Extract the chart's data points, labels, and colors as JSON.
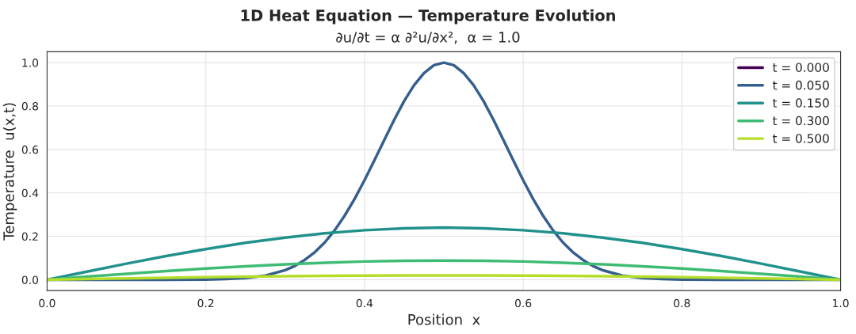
{
  "chart_data": {
    "type": "line",
    "title": "1D Heat Equation — Temperature Evolution",
    "subtitle": "∂u/∂t = α ∂²u/∂x²,  α = 1.0",
    "xlabel": "Position  x",
    "ylabel": "Temperature  u(x,t)",
    "xlim": [
      0,
      1
    ],
    "ylim": [
      -0.05,
      1.05
    ],
    "xticks": [
      {
        "value": 0,
        "label": "0.0"
      },
      {
        "value": 0.2,
        "label": "0.2"
      },
      {
        "value": 0.4,
        "label": "0.4"
      },
      {
        "value": 0.6,
        "label": "0.6"
      },
      {
        "value": 0.8,
        "label": "0.8"
      },
      {
        "value": 1,
        "label": "1.0"
      }
    ],
    "yticks": [
      {
        "value": 0,
        "label": "0.0"
      },
      {
        "value": 0.2,
        "label": "0.2"
      },
      {
        "value": 0.4,
        "label": "0.4"
      },
      {
        "value": 0.6,
        "label": "0.6"
      },
      {
        "value": 0.8,
        "label": "0.8"
      },
      {
        "value": 1,
        "label": "1.0"
      }
    ],
    "grid": true,
    "legend": "top right",
    "marker": "none",
    "line_style": "solid",
    "series": [
      {
        "name": "t = 0.000",
        "color": "#440154"
      },
      {
        "name": "t = 0.050",
        "color": "#355f8d",
        "x": [
          0,
          0.05,
          0.1,
          0.15,
          0.2,
          0.225,
          0.25,
          0.275,
          0.3,
          0.3125,
          0.325,
          0.3375,
          0.35,
          0.3625,
          0.375,
          0.3875,
          0.4,
          0.4125,
          0.425,
          0.4375,
          0.45,
          0.4625,
          0.475,
          0.4875,
          0.5,
          0.5125,
          0.525,
          0.5375,
          0.55,
          0.5625,
          0.575,
          0.5875,
          0.6,
          0.6125,
          0.625,
          0.6375,
          0.65,
          0.6625,
          0.675,
          0.6875,
          0.7,
          0.725,
          0.75,
          0.775,
          0.8,
          0.85,
          0.9,
          0.95,
          1
        ],
        "values": [
          0,
          0,
          0,
          0,
          0.001,
          0.003,
          0.008,
          0.019,
          0.044,
          0.064,
          0.092,
          0.127,
          0.172,
          0.228,
          0.295,
          0.372,
          0.458,
          0.55,
          0.644,
          0.737,
          0.823,
          0.896,
          0.952,
          0.988,
          1,
          0.988,
          0.952,
          0.896,
          0.823,
          0.737,
          0.644,
          0.55,
          0.458,
          0.372,
          0.295,
          0.228,
          0.172,
          0.127,
          0.092,
          0.064,
          0.044,
          0.019,
          0.008,
          0.003,
          0.001,
          0,
          0,
          0,
          0
        ]
      },
      {
        "name": "t = 0.150",
        "color": "#21918c",
        "x": [
          0,
          0.05,
          0.1,
          0.15,
          0.2,
          0.25,
          0.3,
          0.35,
          0.4,
          0.45,
          0.5,
          0.55,
          0.6,
          0.65,
          0.7,
          0.75,
          0.8,
          0.85,
          0.9,
          0.95,
          1
        ],
        "values": [
          0,
          0.037,
          0.074,
          0.109,
          0.141,
          0.17,
          0.194,
          0.214,
          0.228,
          0.237,
          0.24,
          0.237,
          0.228,
          0.214,
          0.194,
          0.17,
          0.141,
          0.109,
          0.074,
          0.037,
          0
        ]
      },
      {
        "name": "t = 0.300",
        "color": "#3fbc73",
        "x": [
          0,
          0.05,
          0.1,
          0.15,
          0.2,
          0.25,
          0.3,
          0.35,
          0.4,
          0.45,
          0.5,
          0.55,
          0.6,
          0.65,
          0.7,
          0.75,
          0.8,
          0.85,
          0.9,
          0.95,
          1
        ],
        "values": [
          0,
          0.014,
          0.027,
          0.04,
          0.052,
          0.062,
          0.071,
          0.078,
          0.084,
          0.087,
          0.088,
          0.087,
          0.084,
          0.078,
          0.071,
          0.062,
          0.052,
          0.04,
          0.027,
          0.014,
          0
        ]
      },
      {
        "name": "t = 0.500",
        "color": "#b5de2b",
        "x": [
          0,
          0.05,
          0.1,
          0.15,
          0.2,
          0.25,
          0.3,
          0.35,
          0.4,
          0.45,
          0.5,
          0.55,
          0.6,
          0.65,
          0.7,
          0.75,
          0.8,
          0.85,
          0.9,
          0.95,
          1
        ],
        "values": [
          0,
          0.003,
          0.006,
          0.009,
          0.012,
          0.014,
          0.016,
          0.018,
          0.019,
          0.02,
          0.02,
          0.02,
          0.019,
          0.018,
          0.016,
          0.014,
          0.012,
          0.009,
          0.006,
          0.003,
          0
        ]
      }
    ]
  }
}
